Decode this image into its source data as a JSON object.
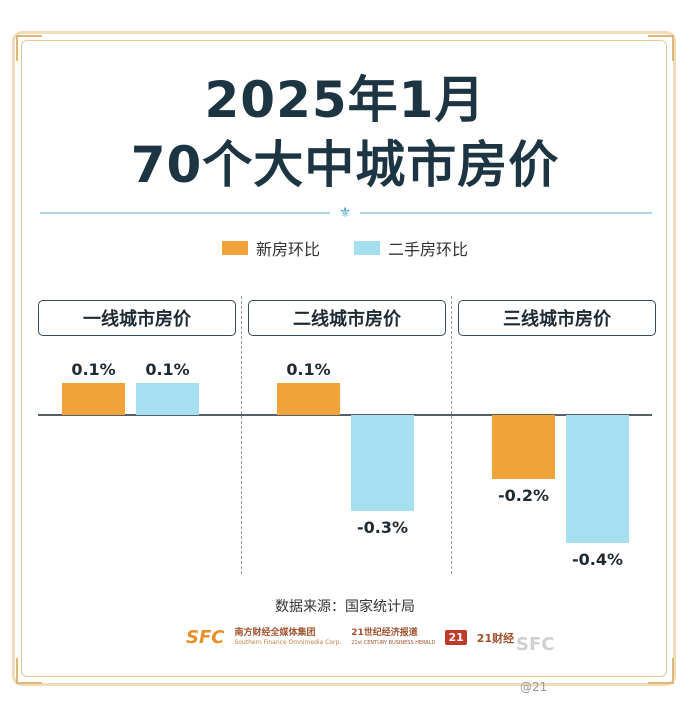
{
  "title_line1": "2025年1月",
  "title_line2": "70个大中城市房价",
  "legend": [
    {
      "label": "新房环比",
      "color": "#f0a23b"
    },
    {
      "label": "二手房环比",
      "color": "#a6dff0"
    }
  ],
  "panels": [
    "一线城市房价",
    "二线城市房价",
    "三线城市房价"
  ],
  "source": "数据来源：国家统计局",
  "logos": {
    "sfc": "SFC",
    "sfc_group": "南方财经全媒体集团",
    "sfc_en": "Southern Finance Omnimedia Corp.",
    "herald": "21世纪经济报道",
    "herald_en": "21st CENTURY BUSINESS HERALD",
    "caijing_badge": "21",
    "caijing": "21财经"
  },
  "watermark": "SFC",
  "weibo": "@21",
  "chart_data": {
    "type": "bar",
    "categories": [
      "一线城市房价",
      "二线城市房价",
      "三线城市房价"
    ],
    "series": [
      {
        "name": "新房环比",
        "values": [
          0.1,
          0.1,
          -0.2
        ],
        "labels": [
          "0.1%",
          "0.1%",
          "-0.2%"
        ],
        "color": "#f0a23b"
      },
      {
        "name": "二手房环比",
        "values": [
          0.1,
          -0.3,
          -0.4
        ],
        "labels": [
          "0.1%",
          "-0.3%",
          "-0.4%"
        ],
        "color": "#a6dff0"
      }
    ],
    "ylim": [
      -0.4,
      0.1
    ],
    "grid": false,
    "legend_position": "top"
  }
}
